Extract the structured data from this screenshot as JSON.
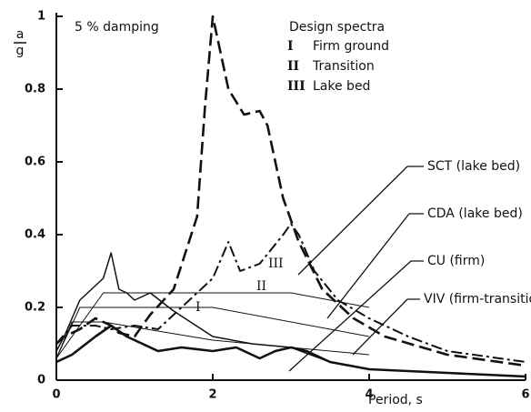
{
  "chart_data": {
    "type": "line",
    "annotation": "5 % damping",
    "ylabel": {
      "numerator": "a",
      "denominator": "g"
    },
    "xlabel": "Period, s",
    "legend_title": "Design spectra",
    "xlim": [
      0,
      6
    ],
    "xticks": [
      0,
      2,
      4,
      6
    ],
    "ylim": [
      0,
      1
    ],
    "yticks": [
      0,
      0.2,
      0.4,
      0.6,
      0.8,
      1
    ],
    "series": [
      {
        "name": "SCT (lake bed)",
        "color": "#111111",
        "dash": "14 6",
        "width": 2.6,
        "x": [
          0,
          0.1,
          0.3,
          0.5,
          0.7,
          0.8,
          1.0,
          1.2,
          1.5,
          1.8,
          1.9,
          2.0,
          2.1,
          2.2,
          2.4,
          2.6,
          2.7,
          2.9,
          3.1,
          3.4,
          3.8,
          4.2,
          5,
          6
        ],
        "values": [
          0.1,
          0.12,
          0.14,
          0.17,
          0.15,
          0.13,
          0.12,
          0.18,
          0.25,
          0.45,
          0.75,
          1.0,
          0.9,
          0.8,
          0.73,
          0.74,
          0.7,
          0.5,
          0.38,
          0.25,
          0.17,
          0.12,
          0.07,
          0.04
        ]
      },
      {
        "name": "CDA (lake bed)",
        "color": "#111111",
        "dash": "12 4 3 4",
        "width": 2,
        "x": [
          0,
          0.2,
          0.5,
          0.7,
          1.0,
          1.3,
          1.6,
          2.0,
          2.2,
          2.35,
          2.6,
          2.9,
          3.0,
          3.1,
          3.3,
          3.6,
          4.0,
          4.5,
          5,
          6
        ],
        "values": [
          0.1,
          0.15,
          0.15,
          0.14,
          0.15,
          0.14,
          0.2,
          0.28,
          0.38,
          0.3,
          0.32,
          0.4,
          0.43,
          0.4,
          0.3,
          0.22,
          0.17,
          0.12,
          0.08,
          0.05
        ]
      },
      {
        "name": "CU (firm)",
        "color": "#111111",
        "dash": "none",
        "width": 2.6,
        "x": [
          0,
          0.2,
          0.5,
          0.7,
          0.9,
          1.0,
          1.3,
          1.6,
          2.0,
          2.3,
          2.6,
          2.8,
          3.0,
          3.2,
          3.5,
          4,
          5,
          6
        ],
        "values": [
          0.05,
          0.07,
          0.12,
          0.15,
          0.12,
          0.11,
          0.08,
          0.09,
          0.08,
          0.09,
          0.06,
          0.08,
          0.09,
          0.08,
          0.05,
          0.03,
          0.02,
          0.01
        ]
      },
      {
        "name": "VIV (firm-transition)",
        "color": "#111111",
        "dash": "none",
        "width": 1.5,
        "x": [
          0,
          0.1,
          0.3,
          0.5,
          0.6,
          0.7,
          0.8,
          0.9,
          1.0,
          1.2,
          1.5,
          2.0,
          2.5,
          3.0,
          3.5,
          4,
          5,
          6
        ],
        "values": [
          0.08,
          0.12,
          0.22,
          0.26,
          0.28,
          0.35,
          0.25,
          0.24,
          0.22,
          0.24,
          0.19,
          0.12,
          0.1,
          0.09,
          0.05,
          0.03,
          0.02,
          0.01
        ]
      },
      {
        "name": "I",
        "description": "Firm ground",
        "color": "#111111",
        "dash": "none",
        "width": 1,
        "x": [
          0,
          0.2,
          0.6,
          2.0,
          4.0
        ],
        "values": [
          0.06,
          0.16,
          0.16,
          0.11,
          0.07
        ]
      },
      {
        "name": "II",
        "description": "Transition",
        "color": "#111111",
        "dash": "none",
        "width": 1,
        "x": [
          0,
          0.3,
          2.0,
          4.0
        ],
        "values": [
          0.06,
          0.2,
          0.2,
          0.12
        ]
      },
      {
        "name": "III",
        "description": "Lake bed",
        "color": "#111111",
        "dash": "none",
        "width": 1,
        "x": [
          0,
          0.6,
          3.0,
          4.0
        ],
        "values": [
          0.06,
          0.24,
          0.24,
          0.2
        ]
      }
    ]
  }
}
